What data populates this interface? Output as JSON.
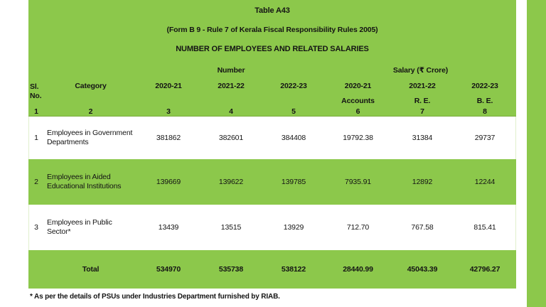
{
  "colors": {
    "green": "#8cc84b"
  },
  "titles": {
    "table_no": "Table A43",
    "form_line": "(Form B 9 - Rule 7 of Kerala Fiscal Responsibility Rules 2005)",
    "heading": "NUMBER OF EMPLOYEES AND RELATED SALARIES"
  },
  "header": {
    "sl_line1": "Sl.",
    "sl_line2": "No.",
    "category": "Category",
    "number_group": "Number",
    "salary_group": "Salary (₹ Crore)",
    "number_years": [
      "2020-21",
      "2021-22",
      "2022-23"
    ],
    "salary_years": [
      "2020-21",
      "2021-22",
      "2022-23"
    ],
    "salary_subs": [
      "Accounts",
      "R. E.",
      "B. E."
    ],
    "col_numbers": [
      "1",
      "2",
      "3",
      "4",
      "5",
      "6",
      "7",
      "8"
    ]
  },
  "rows": [
    {
      "sl": "1",
      "category_lines": [
        "Employees in Government",
        "Departments"
      ],
      "number": [
        "381862",
        "382601",
        "384408"
      ],
      "salary": [
        "19792.38",
        "31384",
        "29737"
      ]
    },
    {
      "sl": "2",
      "category_lines": [
        "Employees in Aided",
        "Educational Institutions"
      ],
      "number": [
        "139669",
        "139622",
        "139785"
      ],
      "salary": [
        "7935.91",
        "12892",
        "12244"
      ]
    },
    {
      "sl": "3",
      "category_lines": [
        "Employees in Public Sector*"
      ],
      "number": [
        "13439",
        "13515",
        "13929"
      ],
      "salary": [
        "712.70",
        "767.58",
        "815.41"
      ]
    }
  ],
  "total": {
    "label": "Total",
    "number": [
      "534970",
      "535738",
      "538122"
    ],
    "salary": [
      "28440.99",
      "45043.39",
      "42796.27"
    ]
  },
  "footnote": "* As per the details of PSUs under Industries Department furnished by RIAB."
}
